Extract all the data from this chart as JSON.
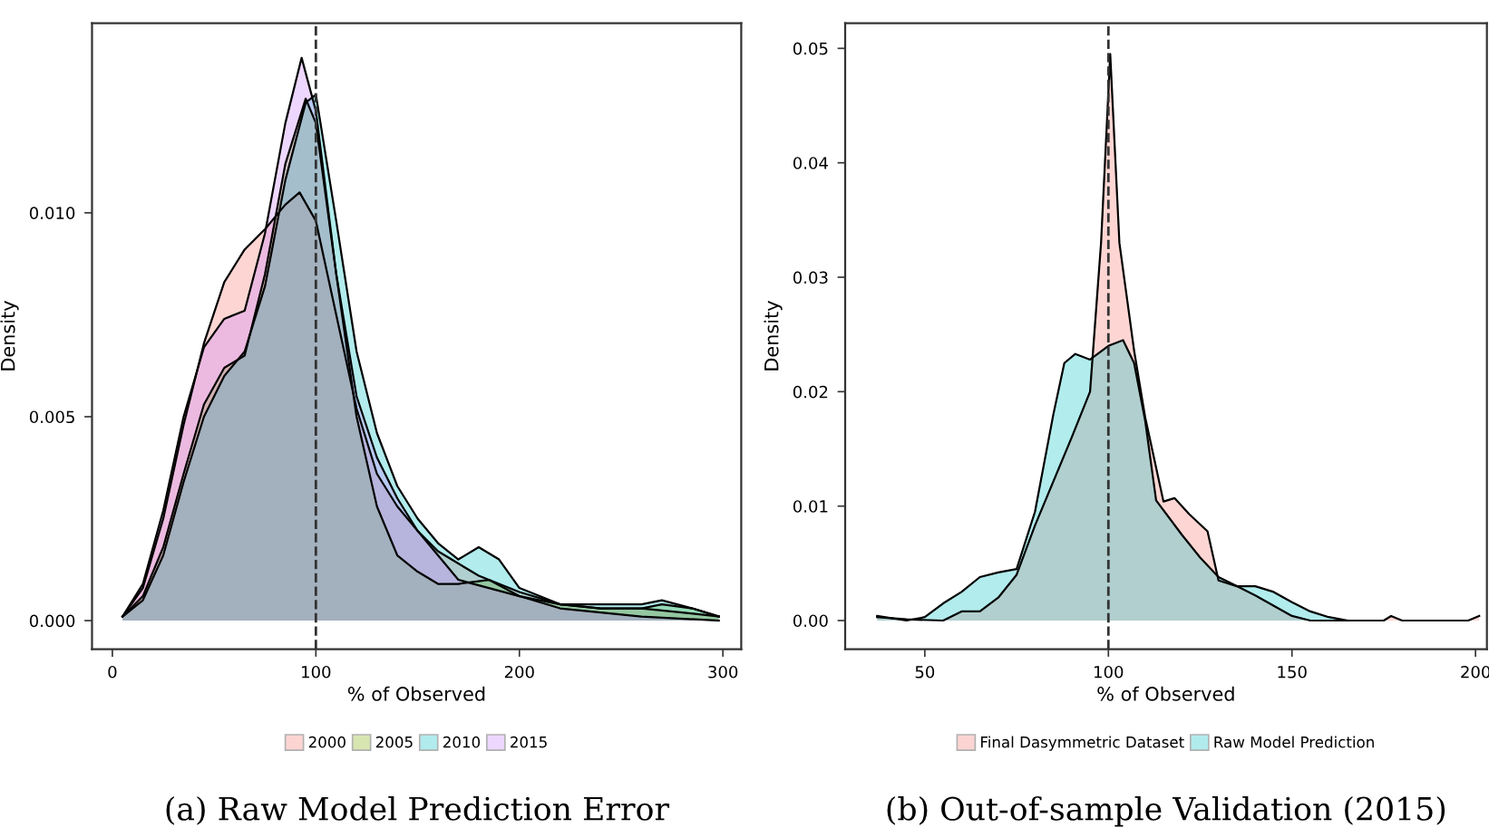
{
  "chart_data": [
    {
      "type": "area",
      "title": "(a) Raw Model Prediction Error",
      "xlabel": "% of Observed",
      "ylabel": "Density",
      "xlim": [
        -10,
        309
      ],
      "ylim": [
        -0.0007,
        0.01465
      ],
      "xticks": [
        0,
        100,
        200,
        300
      ],
      "yticks": [
        {
          "value": 0,
          "label": "0.000"
        },
        {
          "value": 0.005,
          "label": "0.005"
        },
        {
          "value": 0.01,
          "label": "0.010"
        }
      ],
      "grid": false,
      "legend": "bottom",
      "ref_lines": [
        {
          "axis": "x",
          "value": 100,
          "line_style": "dashed",
          "color": "#333333"
        }
      ],
      "series": [
        {
          "name": "2000",
          "color": "#f8766d",
          "x": [
            5,
            15,
            25,
            35,
            45,
            55,
            65,
            75,
            85,
            92,
            100,
            110,
            120,
            130,
            140,
            150,
            160,
            170,
            180,
            190,
            200,
            220,
            240,
            260,
            280,
            298
          ],
          "values": [
            0.0001,
            0.0008,
            0.0025,
            0.0048,
            0.0068,
            0.0083,
            0.0091,
            0.0096,
            0.0102,
            0.0105,
            0.0098,
            0.0075,
            0.0052,
            0.0036,
            0.0028,
            0.0022,
            0.0017,
            0.0014,
            0.0011,
            0.0009,
            0.0007,
            0.0004,
            0.0003,
            0.0003,
            0.0002,
            0.0001
          ]
        },
        {
          "name": "2005",
          "color": "#7cae00",
          "x": [
            5,
            15,
            25,
            35,
            45,
            55,
            65,
            75,
            85,
            95,
            100,
            110,
            120,
            130,
            140,
            150,
            160,
            170,
            185,
            200,
            220,
            240,
            260,
            270,
            285,
            298
          ],
          "values": [
            0.0001,
            0.0006,
            0.0018,
            0.0036,
            0.0053,
            0.0062,
            0.0065,
            0.0085,
            0.0112,
            0.0128,
            0.0122,
            0.0085,
            0.005,
            0.0028,
            0.0016,
            0.0012,
            0.0009,
            0.0009,
            0.001,
            0.0006,
            0.0004,
            0.0003,
            0.0003,
            0.0004,
            0.0003,
            0.0001
          ]
        },
        {
          "name": "2010",
          "color": "#00bfc4",
          "x": [
            5,
            15,
            25,
            35,
            45,
            55,
            65,
            75,
            85,
            95,
            100,
            110,
            120,
            130,
            140,
            150,
            160,
            170,
            180,
            190,
            200,
            220,
            240,
            260,
            270,
            285,
            298
          ],
          "values": [
            0.0001,
            0.0005,
            0.0016,
            0.0034,
            0.005,
            0.006,
            0.0066,
            0.0082,
            0.0108,
            0.0127,
            0.0129,
            0.0098,
            0.0066,
            0.0046,
            0.0033,
            0.0025,
            0.0019,
            0.0015,
            0.0018,
            0.0015,
            0.0008,
            0.0004,
            0.0004,
            0.0004,
            0.0005,
            0.0003,
            0.0001
          ]
        },
        {
          "name": "2015",
          "color": "#c77cff",
          "x": [
            5,
            15,
            25,
            35,
            45,
            55,
            65,
            75,
            85,
            93,
            100,
            110,
            120,
            130,
            140,
            150,
            160,
            170,
            185,
            200,
            220,
            240,
            260,
            298
          ],
          "values": [
            0.0001,
            0.0009,
            0.0027,
            0.005,
            0.0067,
            0.0074,
            0.0076,
            0.0095,
            0.0122,
            0.0138,
            0.0125,
            0.0085,
            0.0055,
            0.004,
            0.003,
            0.0022,
            0.0016,
            0.001,
            0.0008,
            0.0006,
            0.0003,
            0.0002,
            0.0001,
            0.0
          ]
        }
      ]
    },
    {
      "type": "area",
      "title": "(b) Out-of-sample Validation (2015)",
      "xlabel": "% of Observed",
      "ylabel": "Density",
      "xlim": [
        28.3,
        203.1
      ],
      "ylim": [
        -0.0025,
        0.0522
      ],
      "xticks": [
        50,
        100,
        150,
        200
      ],
      "yticks": [
        {
          "value": 0,
          "label": "0.00"
        },
        {
          "value": 0.01,
          "label": "0.01"
        },
        {
          "value": 0.02,
          "label": "0.02"
        },
        {
          "value": 0.03,
          "label": "0.03"
        },
        {
          "value": 0.04,
          "label": "0.04"
        },
        {
          "value": 0.05,
          "label": "0.05"
        }
      ],
      "grid": false,
      "legend": "bottom",
      "ref_lines": [
        {
          "axis": "x",
          "value": 100,
          "line_style": "dashed",
          "color": "#333333"
        }
      ],
      "series": [
        {
          "name": "Final Dasymmetric Dataset",
          "color": "#f8766d",
          "x": [
            37,
            45,
            55,
            60,
            65,
            70,
            75,
            80,
            90,
            95,
            98,
            100.5,
            103,
            107,
            110,
            115,
            118,
            122,
            127,
            130,
            135,
            140,
            150,
            155,
            175,
            177,
            180,
            198,
            201
          ],
          "values": [
            0.0003,
            0.0001,
            0.0,
            0.0008,
            0.0008,
            0.002,
            0.004,
            0.0083,
            0.016,
            0.02,
            0.033,
            0.0495,
            0.033,
            0.0236,
            0.0178,
            0.0104,
            0.0107,
            0.0093,
            0.0078,
            0.0035,
            0.003,
            0.0022,
            0.0004,
            0.0,
            0.0,
            0.0004,
            0.0,
            0.0,
            0.0004
          ]
        },
        {
          "name": "Raw Model Prediction",
          "color": "#00bfc4",
          "x": [
            37,
            45,
            50,
            55,
            60,
            65,
            70,
            75,
            80,
            85,
            88,
            91,
            95,
            100,
            104,
            107,
            110,
            113,
            120,
            125,
            130,
            135,
            140,
            145,
            150,
            155,
            160,
            165
          ],
          "values": [
            0.0004,
            0.0,
            0.0003,
            0.0015,
            0.0025,
            0.0038,
            0.0042,
            0.0045,
            0.0095,
            0.018,
            0.0225,
            0.0233,
            0.0228,
            0.024,
            0.0245,
            0.0225,
            0.0175,
            0.0105,
            0.0075,
            0.0055,
            0.0038,
            0.003,
            0.003,
            0.0025,
            0.0016,
            0.0008,
            0.0003,
            0.0
          ]
        }
      ]
    }
  ]
}
